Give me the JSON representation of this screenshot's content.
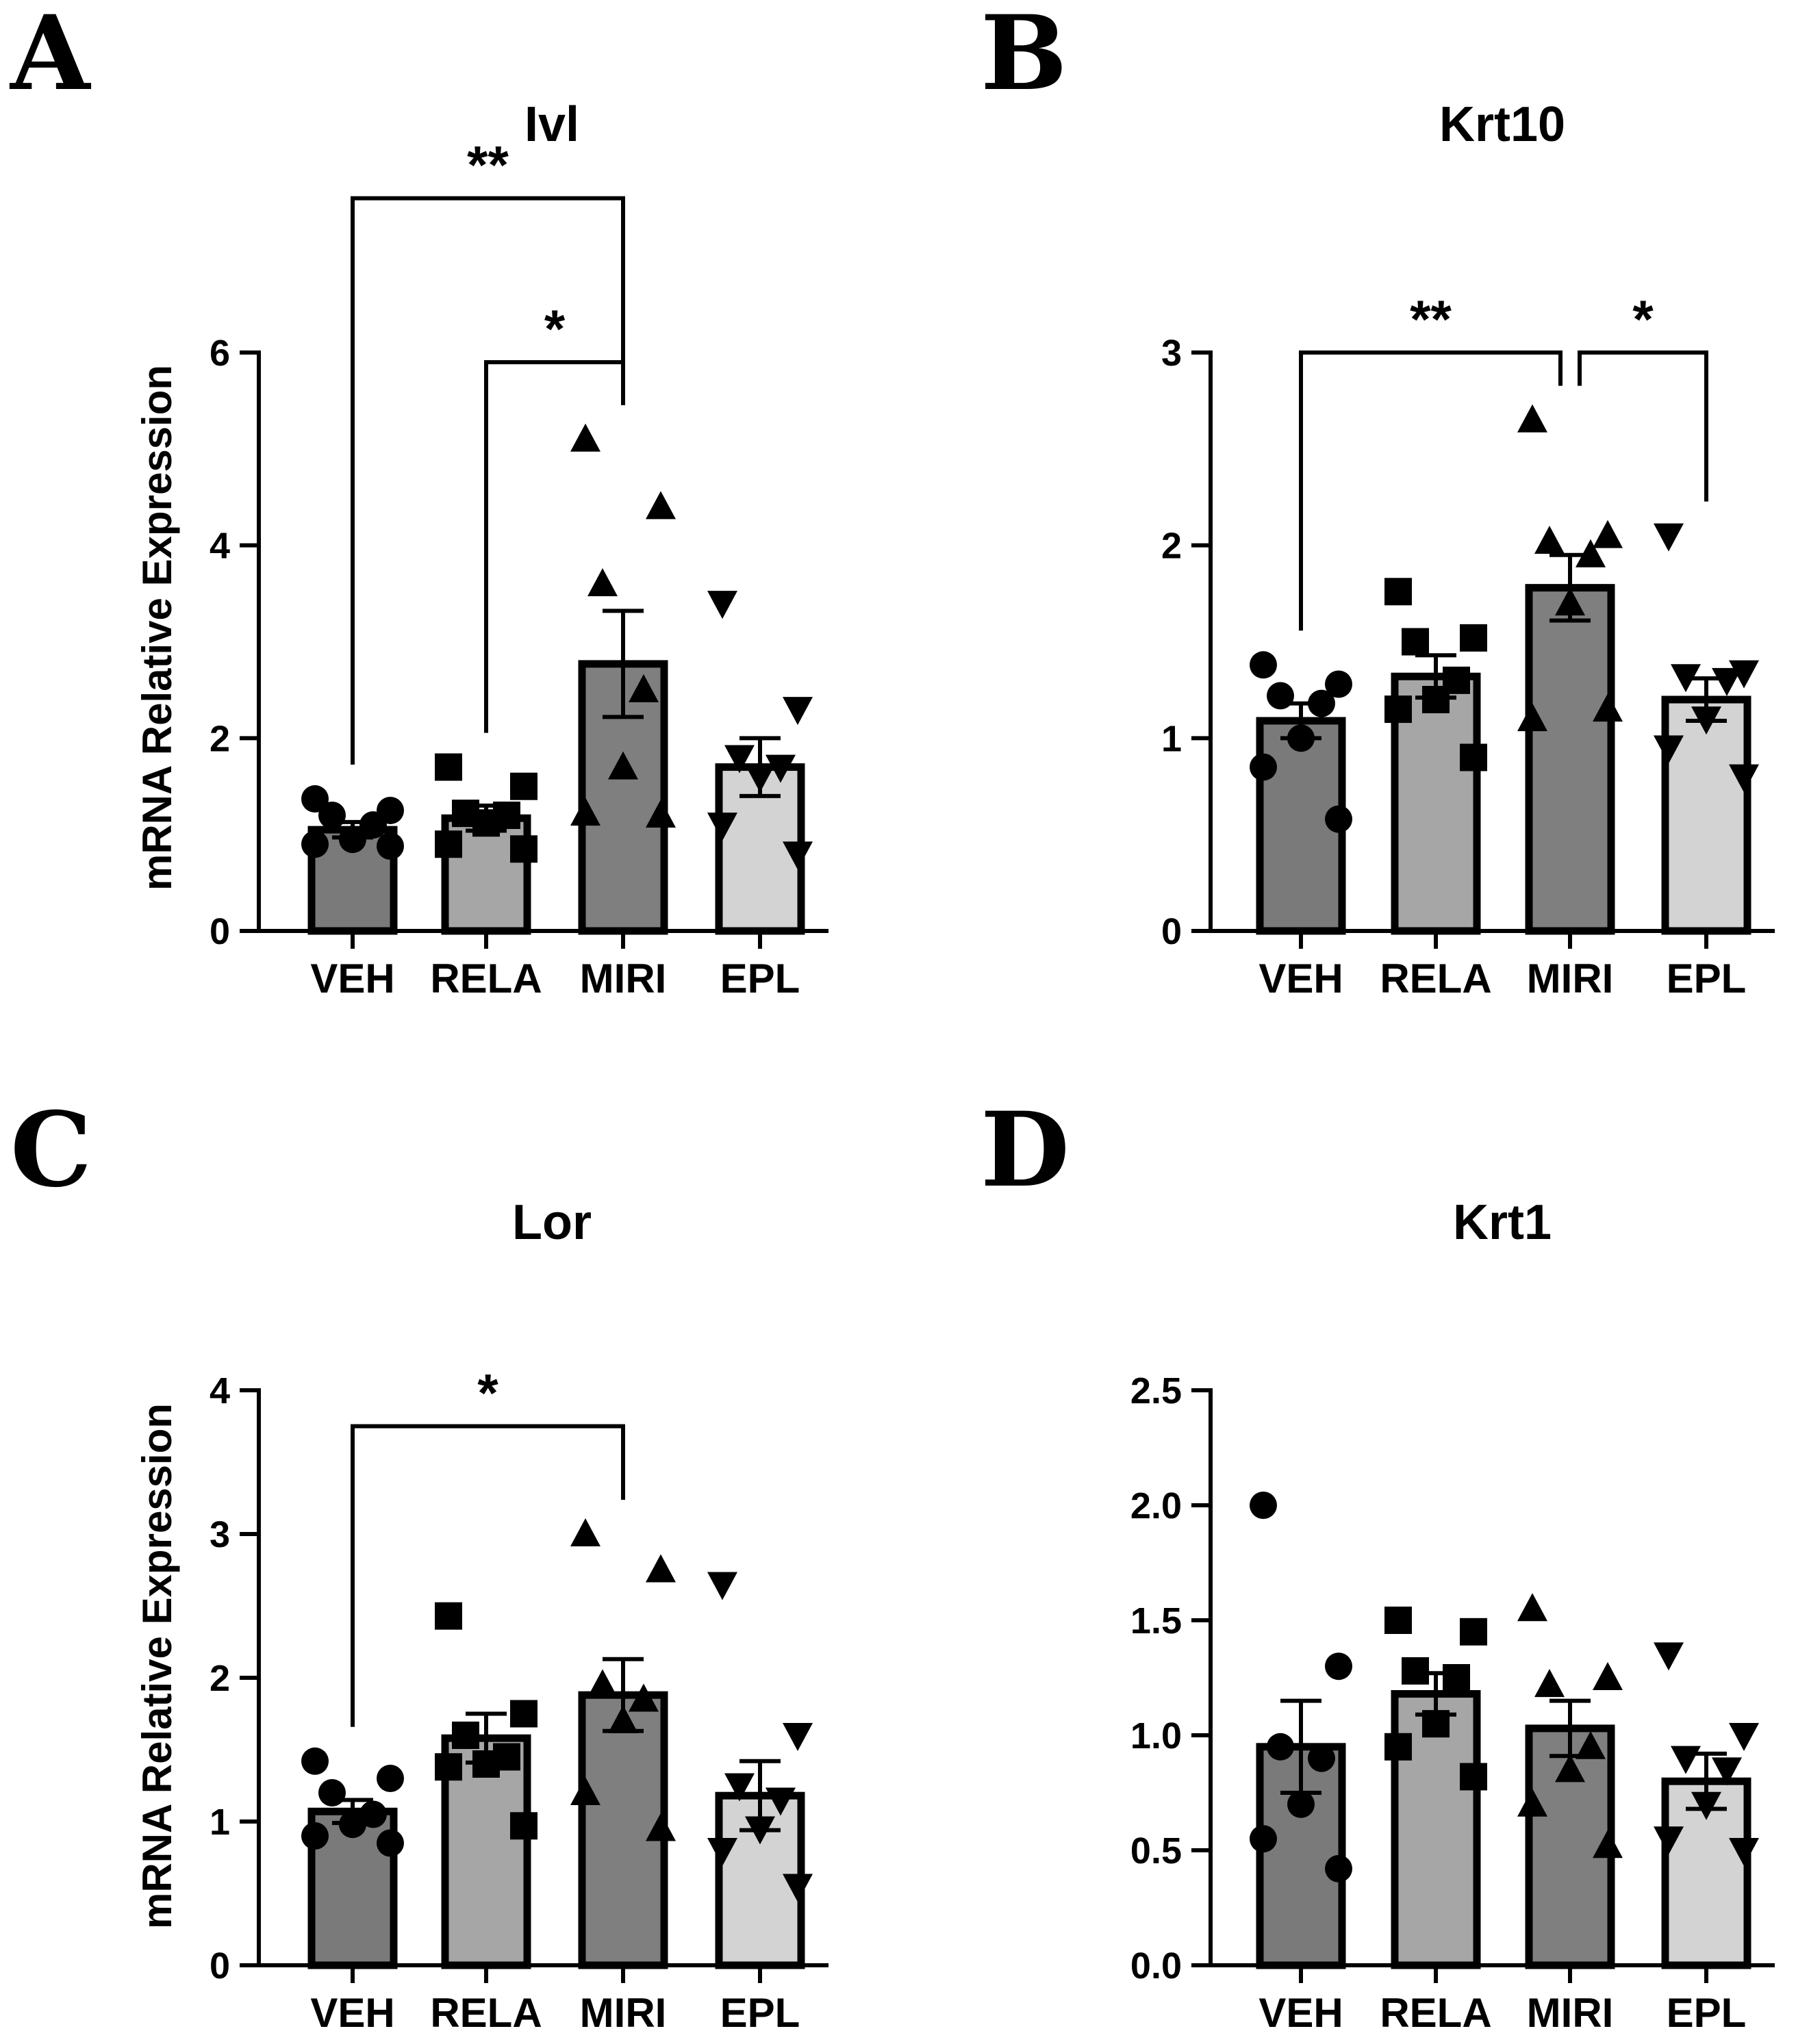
{
  "chart_data": [
    {
      "panel": "A",
      "type": "bar",
      "title": "Ivl",
      "ylabel": "mRNA Relative Expression",
      "xlabel": "",
      "categories": [
        "VEH",
        "RELA",
        "MIRI",
        "EPL"
      ],
      "ylim": [
        0,
        6
      ],
      "yticks": [
        "0",
        "2",
        "4",
        "6"
      ],
      "bar_colors": [
        "#7a7a7a",
        "#a6a6a6",
        "#7f7f7f",
        "#d3d3d3"
      ],
      "markers": [
        "circle",
        "square",
        "triangle-up",
        "triangle-down"
      ],
      "values": [
        1.05,
        1.17,
        2.77,
        1.7
      ],
      "sem": [
        0.08,
        0.13,
        0.55,
        0.3
      ],
      "points": [
        [
          1.37,
          1.25,
          1.2,
          1.1,
          0.95,
          0.9,
          0.88
        ],
        [
          1.7,
          1.5,
          1.22,
          1.2,
          1.12,
          0.9,
          0.85
        ],
        [
          5.1,
          4.4,
          3.6,
          2.5,
          1.7,
          1.22,
          1.2
        ],
        [
          3.4,
          2.3,
          1.8,
          1.7,
          1.6,
          1.1,
          0.8
        ]
      ],
      "significance": [
        {
          "from": 0,
          "to": 2,
          "label": "**",
          "y": 7.6
        },
        {
          "from": 1,
          "to": 2,
          "label": "*",
          "y": 5.9
        }
      ]
    },
    {
      "panel": "B",
      "type": "bar",
      "title": "Krt10",
      "ylabel": "",
      "xlabel": "",
      "categories": [
        "VEH",
        "RELA",
        "MIRI",
        "EPL"
      ],
      "ylim": [
        0,
        3
      ],
      "yticks": [
        "0",
        "1",
        "2",
        "3"
      ],
      "bar_colors": [
        "#7a7a7a",
        "#a6a6a6",
        "#7f7f7f",
        "#d3d3d3"
      ],
      "markers": [
        "circle",
        "square",
        "triangle-up",
        "triangle-down"
      ],
      "values": [
        1.09,
        1.32,
        1.78,
        1.2
      ],
      "sem": [
        0.09,
        0.11,
        0.17,
        0.11
      ],
      "points": [
        [
          1.38,
          1.28,
          1.22,
          1.18,
          1.0,
          0.85,
          0.58
        ],
        [
          1.76,
          1.52,
          1.5,
          1.3,
          1.2,
          1.15,
          0.9
        ],
        [
          2.65,
          2.05,
          2.02,
          1.95,
          1.7,
          1.1,
          1.15
        ],
        [
          2.05,
          1.34,
          1.32,
          1.3,
          1.1,
          0.95,
          0.8
        ]
      ],
      "significance": [
        {
          "from": 0,
          "to": 2,
          "label": "**",
          "y": 3.0
        },
        {
          "from": 2,
          "to": 3,
          "label": "*",
          "y": 3.0
        }
      ]
    },
    {
      "panel": "C",
      "type": "bar",
      "title": "Lor",
      "ylabel": "mRNA Relative Expression",
      "xlabel": "",
      "categories": [
        "VEH",
        "RELA",
        "MIRI",
        "EPL"
      ],
      "ylim": [
        0,
        4
      ],
      "yticks": [
        "0",
        "1",
        "2",
        "3",
        "4"
      ],
      "bar_colors": [
        "#7a7a7a",
        "#a6a6a6",
        "#7f7f7f",
        "#d3d3d3"
      ],
      "markers": [
        "circle",
        "square",
        "triangle-up",
        "triangle-down"
      ],
      "values": [
        1.07,
        1.58,
        1.88,
        1.18
      ],
      "sem": [
        0.08,
        0.17,
        0.25,
        0.24
      ],
      "points": [
        [
          1.42,
          1.3,
          1.2,
          1.05,
          0.98,
          0.9,
          0.85
        ],
        [
          2.43,
          1.75,
          1.6,
          1.45,
          1.4,
          1.38,
          0.97
        ],
        [
          3.0,
          2.75,
          1.95,
          1.85,
          1.7,
          1.2,
          0.95
        ],
        [
          2.65,
          1.6,
          1.25,
          1.15,
          0.95,
          0.8,
          0.55
        ]
      ],
      "significance": [
        {
          "from": 0,
          "to": 2,
          "label": "*",
          "y": 3.75
        }
      ]
    },
    {
      "panel": "D",
      "type": "bar",
      "title": "Krt1",
      "ylabel": "",
      "xlabel": "",
      "categories": [
        "VEH",
        "RELA",
        "MIRI",
        "EPL"
      ],
      "ylim": [
        0,
        2.5
      ],
      "yticks": [
        "0.0",
        "0.5",
        "1.0",
        "1.5",
        "2.0",
        "2.5"
      ],
      "bar_colors": [
        "#7a7a7a",
        "#a6a6a6",
        "#7f7f7f",
        "#d3d3d3"
      ],
      "markers": [
        "circle",
        "square",
        "triangle-up",
        "triangle-down"
      ],
      "values": [
        0.95,
        1.18,
        1.03,
        0.8
      ],
      "sem": [
        0.2,
        0.09,
        0.12,
        0.12
      ],
      "points": [
        [
          2.0,
          1.3,
          0.95,
          0.9,
          0.7,
          0.55,
          0.42
        ],
        [
          1.5,
          1.45,
          1.28,
          1.25,
          1.05,
          0.95,
          0.82
        ],
        [
          1.55,
          1.25,
          1.22,
          0.95,
          0.85,
          0.7,
          0.52
        ],
        [
          1.35,
          1.0,
          0.9,
          0.85,
          0.7,
          0.55,
          0.5
        ]
      ],
      "significance": []
    }
  ]
}
